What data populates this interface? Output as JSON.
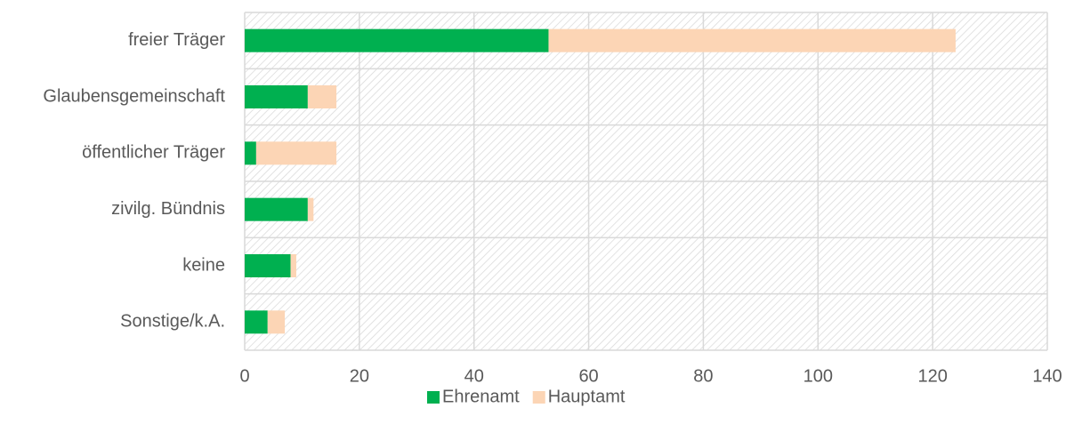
{
  "chart_data": {
    "type": "bar",
    "orientation": "horizontal",
    "stacked": true,
    "categories": [
      "freier Träger",
      "Glaubensgemeinschaft",
      "öffentlicher Träger",
      "zivilg. Bündnis",
      "keine",
      "Sonstige/k.A."
    ],
    "series": [
      {
        "name": "Ehrenamt",
        "color": "#00b050",
        "values": [
          53,
          11,
          2,
          11,
          8,
          4
        ]
      },
      {
        "name": "Hauptamt",
        "color": "#fcd5b5",
        "values": [
          71,
          5,
          14,
          1,
          1,
          3
        ]
      }
    ],
    "xlim": [
      0,
      140
    ],
    "xticks": [
      0,
      20,
      40,
      60,
      80,
      100,
      120,
      140
    ],
    "grid": true,
    "legend": "bottom"
  }
}
